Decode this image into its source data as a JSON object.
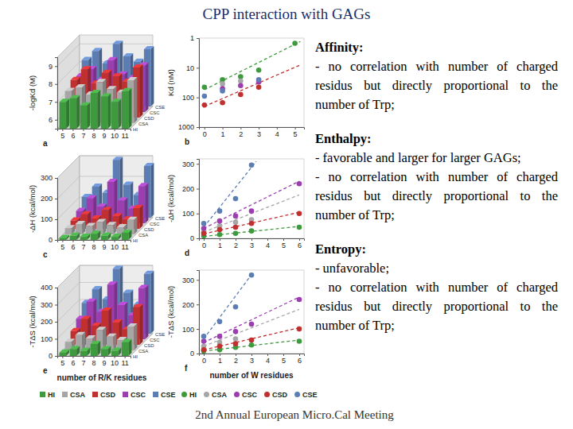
{
  "title": "CPP interaction with GAGs",
  "footer": "2nd Annual European Micro.Cal Meeting",
  "notes": [
    {
      "heading": "Affinity:",
      "items": [
        "- no correlation with number of charged residus but directly proportional to the number of Trp;"
      ]
    },
    {
      "heading": "Enthalpy:",
      "items": [
        "- favorable and larger for larger GAGs;",
        "- no correlation with number of charged residus but directly proportional to the number of Trp;"
      ]
    },
    {
      "heading": "Entropy:",
      "items": [
        "- unfavorable;",
        "- no correlation with number of charged residus but directly proportional to the number of Trp;"
      ]
    }
  ],
  "chart_data": [
    {
      "type": "bar3d",
      "panel_label": "a",
      "y_label": "-logKd (M)",
      "categories": [
        "5",
        "6",
        "7",
        "8",
        "9",
        "10",
        "11"
      ],
      "ylim": [
        5.5,
        9.5
      ],
      "yticks": [
        6,
        7,
        8,
        9
      ],
      "grid": true,
      "series": [
        {
          "name": "HI",
          "color": "#3f9a3f",
          "values": [
            7.0,
            7.2,
            6.8,
            7.5,
            7.3,
            7.0,
            7.6
          ]
        },
        {
          "name": "CSA",
          "color": "#a6a6a6",
          "values": [
            7.3,
            7.5,
            7.1,
            7.8,
            7.4,
            7.2,
            7.9
          ]
        },
        {
          "name": "CSD",
          "color": "#c0302f",
          "values": [
            7.6,
            8.2,
            7.4,
            8.0,
            7.8,
            7.5,
            8.3
          ]
        },
        {
          "name": "CSC",
          "color": "#9b3fb0",
          "values": [
            7.5,
            7.9,
            7.3,
            8.4,
            7.6,
            7.4,
            8.1
          ]
        },
        {
          "name": "CSE",
          "color": "#5b7db3",
          "values": [
            8.1,
            8.6,
            7.9,
            9.0,
            8.3,
            8.0,
            8.7
          ]
        }
      ]
    },
    {
      "type": "scatter",
      "panel_label": "b",
      "y_label": "Kd (nM)",
      "log": "y",
      "xlim": [
        -0.3,
        5.5
      ],
      "xticks": [
        0,
        1,
        2,
        3,
        4,
        5
      ],
      "ylim": [
        1000,
        1
      ],
      "yticks": [
        1,
        10,
        100,
        1000
      ],
      "grid": false,
      "series": [
        {
          "name": "HI",
          "color": "#3f9a3f",
          "marker": "circle",
          "line_style": "dashed",
          "x": [
            0,
            1,
            2,
            3,
            5
          ],
          "values": [
            45,
            25,
            20,
            12,
            1.5
          ],
          "fit": {
            "x": [
              0,
              5.3
            ],
            "values": [
              55,
              1.3
            ]
          }
        },
        {
          "name": "CSA",
          "color": "#a6a6a6",
          "marker": "circle",
          "x": [
            1,
            2
          ],
          "values": [
            35,
            28
          ]
        },
        {
          "name": "CSC",
          "color": "#9b3fb0",
          "marker": "circle",
          "x": [
            1,
            2,
            3
          ],
          "values": [
            50,
            40,
            30
          ]
        },
        {
          "name": "CSD",
          "color": "#c0302f",
          "marker": "circle",
          "line_style": "dashed",
          "x": [
            0,
            1,
            2,
            3
          ],
          "values": [
            180,
            150,
            80,
            45
          ],
          "fit": {
            "x": [
              0,
              5.3
            ],
            "values": [
              200,
              8
            ]
          }
        },
        {
          "name": "CSE",
          "color": "#5b7db3",
          "marker": "circle",
          "x": [
            0,
            1,
            3
          ],
          "values": [
            90,
            60,
            25
          ]
        }
      ]
    },
    {
      "type": "bar3d",
      "panel_label": "c",
      "y_label": "-ΔH (kcal/mol)",
      "categories": [
        "5",
        "6",
        "7",
        "8",
        "9",
        "10",
        "11"
      ],
      "ylim": [
        0,
        300
      ],
      "yticks": [
        0,
        100,
        200,
        300
      ],
      "grid": true,
      "series": [
        {
          "name": "HI",
          "color": "#3f9a3f",
          "values": [
            10,
            20,
            15,
            30,
            20,
            15,
            35
          ]
        },
        {
          "name": "CSA",
          "color": "#a6a6a6",
          "values": [
            30,
            50,
            40,
            60,
            45,
            35,
            70
          ]
        },
        {
          "name": "CSD",
          "color": "#c0302f",
          "values": [
            40,
            70,
            50,
            90,
            60,
            45,
            100
          ]
        },
        {
          "name": "CSC",
          "color": "#9b3fb0",
          "values": [
            60,
            120,
            80,
            200,
            110,
            70,
            180
          ]
        },
        {
          "name": "CSE",
          "color": "#5b7db3",
          "values": [
            100,
            150,
            120,
            280,
            160,
            110,
            250
          ]
        }
      ]
    },
    {
      "type": "scatter",
      "panel_label": "d",
      "y_label": "-ΔH (kcal/mol)",
      "xlim": [
        -0.3,
        6.3
      ],
      "xticks": [
        0,
        1,
        2,
        3,
        4,
        5,
        6
      ],
      "ylim": [
        0,
        320
      ],
      "yticks": [
        0,
        100,
        200,
        300
      ],
      "grid": false,
      "series": [
        {
          "name": "HI",
          "color": "#3f9a3f",
          "marker": "circle",
          "line_style": "dashed",
          "x": [
            0,
            1,
            2,
            3,
            6
          ],
          "values": [
            10,
            15,
            20,
            30,
            45
          ],
          "fit": {
            "x": [
              0,
              6
            ],
            "values": [
              8,
              48
            ]
          }
        },
        {
          "name": "CSA",
          "color": "#a6a6a6",
          "marker": "circle",
          "line_style": "dashed",
          "x": [
            0,
            1,
            2,
            3
          ],
          "values": [
            25,
            50,
            65,
            75
          ],
          "fit": {
            "x": [
              0,
              6
            ],
            "values": [
              25,
              175
            ]
          }
        },
        {
          "name": "CSC",
          "color": "#9b3fb0",
          "marker": "circle",
          "line_style": "dashed",
          "x": [
            0,
            1,
            2,
            3,
            6
          ],
          "values": [
            40,
            70,
            90,
            110,
            220
          ],
          "fit": {
            "x": [
              0,
              6
            ],
            "values": [
              40,
              230
            ]
          }
        },
        {
          "name": "CSD",
          "color": "#c0302f",
          "marker": "circle",
          "line_style": "dashed",
          "x": [
            0,
            1,
            2,
            3,
            6
          ],
          "values": [
            20,
            35,
            45,
            60,
            100
          ],
          "fit": {
            "x": [
              0,
              6
            ],
            "values": [
              18,
              105
            ]
          }
        },
        {
          "name": "CSE",
          "color": "#5b7db3",
          "marker": "circle",
          "line_style": "dashed",
          "x": [
            0,
            1,
            2,
            3
          ],
          "values": [
            60,
            110,
            160,
            295
          ],
          "fit": {
            "x": [
              0,
              3.3
            ],
            "values": [
              45,
              310
            ]
          }
        }
      ]
    },
    {
      "type": "bar3d",
      "panel_label": "e",
      "y_label": "-TΔS (kcal/mol)",
      "x_label": "number of R/K residues",
      "categories": [
        "5",
        "6",
        "7",
        "8",
        "9",
        "10",
        "11"
      ],
      "ylim": [
        0,
        400
      ],
      "yticks": [
        0,
        100,
        200,
        300,
        400
      ],
      "grid": true,
      "legend": "bottom",
      "series": [
        {
          "name": "HI",
          "color": "#3f9a3f",
          "values": [
            20,
            40,
            30,
            70,
            40,
            30,
            80
          ]
        },
        {
          "name": "CSA",
          "color": "#a6a6a6",
          "values": [
            50,
            90,
            70,
            120,
            80,
            60,
            140
          ]
        },
        {
          "name": "CSD",
          "color": "#c0302f",
          "values": [
            80,
            150,
            110,
            200,
            130,
            90,
            220
          ]
        },
        {
          "name": "CSC",
          "color": "#9b3fb0",
          "values": [
            120,
            220,
            160,
            320,
            200,
            140,
            300
          ]
        },
        {
          "name": "CSE",
          "color": "#5b7db3",
          "values": [
            180,
            260,
            200,
            380,
            240,
            170,
            350
          ]
        }
      ]
    },
    {
      "type": "scatter",
      "panel_label": "f",
      "y_label": "-TΔS (kcal/mol)",
      "x_label": "number of W residues",
      "xlim": [
        -0.3,
        6.3
      ],
      "xticks": [
        0,
        1,
        2,
        3,
        4,
        5,
        6
      ],
      "ylim": [
        0,
        340
      ],
      "yticks": [
        0,
        100,
        200,
        300
      ],
      "grid": false,
      "legend": "bottom",
      "series": [
        {
          "name": "HI",
          "color": "#3f9a3f",
          "marker": "circle",
          "line_style": "dashed",
          "x": [
            0,
            1,
            2,
            3,
            6
          ],
          "values": [
            10,
            15,
            25,
            35,
            50
          ],
          "fit": {
            "x": [
              0,
              6
            ],
            "values": [
              10,
              55
            ]
          }
        },
        {
          "name": "CSA",
          "color": "#a6a6a6",
          "marker": "circle",
          "line_style": "dashed",
          "x": [
            0,
            1,
            2
          ],
          "values": [
            30,
            45,
            60
          ],
          "fit": {
            "x": [
              0,
              6
            ],
            "values": [
              30,
              180
            ]
          }
        },
        {
          "name": "CSC",
          "color": "#9b3fb0",
          "marker": "circle",
          "line_style": "dashed",
          "x": [
            0,
            1,
            2,
            3,
            6
          ],
          "values": [
            50,
            70,
            90,
            120,
            220
          ],
          "fit": {
            "x": [
              0,
              6
            ],
            "values": [
              45,
              230
            ]
          }
        },
        {
          "name": "CSD",
          "color": "#c0302f",
          "marker": "circle",
          "line_style": "dashed",
          "x": [
            0,
            1,
            2,
            3,
            6
          ],
          "values": [
            15,
            30,
            40,
            55,
            100
          ],
          "fit": {
            "x": [
              0,
              6
            ],
            "values": [
              15,
              105
            ]
          }
        },
        {
          "name": "CSE",
          "color": "#5b7db3",
          "marker": "circle",
          "line_style": "dashed",
          "x": [
            0,
            1,
            2,
            3
          ],
          "values": [
            70,
            130,
            190,
            320
          ],
          "fit": {
            "x": [
              0,
              3.1
            ],
            "values": [
              60,
              330
            ]
          }
        }
      ]
    }
  ]
}
